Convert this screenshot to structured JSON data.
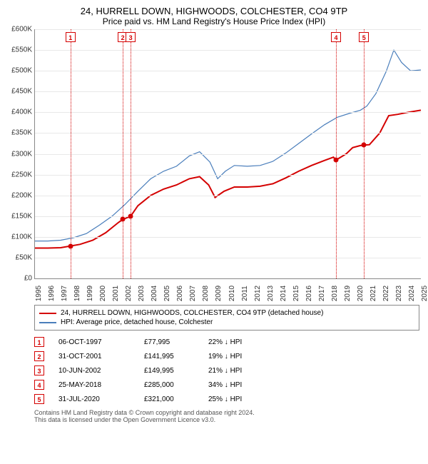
{
  "title": "24, HURRELL DOWN, HIGHWOODS, COLCHESTER, CO4 9TP",
  "subtitle": "Price paid vs. HM Land Registry's House Price Index (HPI)",
  "colors": {
    "series_property": "#d40000",
    "series_hpi": "#4a7ebb",
    "grid": "#e8e8e8",
    "axis": "#888888",
    "text": "#333333",
    "background": "#ffffff"
  },
  "chart": {
    "type": "line",
    "x_years_start": 1995,
    "x_years_end": 2025,
    "x_ticks": [
      1995,
      1996,
      1997,
      1998,
      1999,
      2000,
      2001,
      2002,
      2003,
      2004,
      2005,
      2006,
      2007,
      2008,
      2009,
      2010,
      2011,
      2012,
      2013,
      2014,
      2015,
      2016,
      2017,
      2018,
      2019,
      2020,
      2021,
      2022,
      2023,
      2024,
      2025
    ],
    "ylim": [
      0,
      600000
    ],
    "ytick_step": 50000,
    "ytick_labels": [
      "£0",
      "£50K",
      "£100K",
      "£150K",
      "£200K",
      "£250K",
      "£300K",
      "£350K",
      "£400K",
      "£450K",
      "£500K",
      "£550K",
      "£600K"
    ],
    "line_width_property": 2,
    "line_width_hpi": 1.2
  },
  "series_property": [
    [
      1995.0,
      73000
    ],
    [
      1996.0,
      73000
    ],
    [
      1997.0,
      74000
    ],
    [
      1997.76,
      77995
    ],
    [
      1998.5,
      82000
    ],
    [
      1999.5,
      92000
    ],
    [
      2000.5,
      110000
    ],
    [
      2001.5,
      135000
    ],
    [
      2001.83,
      141995
    ],
    [
      2002.44,
      149995
    ],
    [
      2003.0,
      175000
    ],
    [
      2004.0,
      200000
    ],
    [
      2005.0,
      215000
    ],
    [
      2006.0,
      225000
    ],
    [
      2007.0,
      240000
    ],
    [
      2007.8,
      245000
    ],
    [
      2008.5,
      225000
    ],
    [
      2009.0,
      195000
    ],
    [
      2009.7,
      210000
    ],
    [
      2010.5,
      220000
    ],
    [
      2011.5,
      220000
    ],
    [
      2012.5,
      222000
    ],
    [
      2013.5,
      228000
    ],
    [
      2014.5,
      242000
    ],
    [
      2015.5,
      258000
    ],
    [
      2016.5,
      272000
    ],
    [
      2017.5,
      284000
    ],
    [
      2018.2,
      292000
    ],
    [
      2018.4,
      285000
    ],
    [
      2018.5,
      287000
    ],
    [
      2019.2,
      300000
    ],
    [
      2019.7,
      315000
    ],
    [
      2020.3,
      320000
    ],
    [
      2020.58,
      321000
    ],
    [
      2021.0,
      322000
    ],
    [
      2021.8,
      350000
    ],
    [
      2022.5,
      392000
    ],
    [
      2023.2,
      395000
    ],
    [
      2024.0,
      400000
    ],
    [
      2025.0,
      405000
    ]
  ],
  "series_hpi": [
    [
      1995.0,
      90000
    ],
    [
      1996.0,
      90000
    ],
    [
      1997.0,
      92000
    ],
    [
      1998.0,
      98000
    ],
    [
      1999.0,
      108000
    ],
    [
      2000.0,
      128000
    ],
    [
      2001.0,
      150000
    ],
    [
      2002.0,
      178000
    ],
    [
      2003.0,
      210000
    ],
    [
      2004.0,
      240000
    ],
    [
      2005.0,
      258000
    ],
    [
      2006.0,
      270000
    ],
    [
      2007.0,
      295000
    ],
    [
      2007.8,
      305000
    ],
    [
      2008.6,
      280000
    ],
    [
      2009.2,
      240000
    ],
    [
      2009.8,
      258000
    ],
    [
      2010.5,
      272000
    ],
    [
      2011.5,
      270000
    ],
    [
      2012.5,
      272000
    ],
    [
      2013.5,
      282000
    ],
    [
      2014.5,
      302000
    ],
    [
      2015.5,
      325000
    ],
    [
      2016.5,
      348000
    ],
    [
      2017.5,
      370000
    ],
    [
      2018.5,
      388000
    ],
    [
      2019.5,
      398000
    ],
    [
      2020.3,
      405000
    ],
    [
      2020.8,
      415000
    ],
    [
      2021.5,
      445000
    ],
    [
      2022.3,
      498000
    ],
    [
      2022.9,
      550000
    ],
    [
      2023.5,
      520000
    ],
    [
      2024.2,
      500000
    ],
    [
      2025.0,
      502000
    ]
  ],
  "sale_points": [
    {
      "x": 1997.76,
      "y": 77995
    },
    {
      "x": 2001.83,
      "y": 141995
    },
    {
      "x": 2002.44,
      "y": 149995
    },
    {
      "x": 2018.4,
      "y": 285000
    },
    {
      "x": 2020.58,
      "y": 321000
    }
  ],
  "markers": [
    {
      "n": "1",
      "x": 1997.76
    },
    {
      "n": "2",
      "x": 2001.83
    },
    {
      "n": "3",
      "x": 2002.44
    },
    {
      "n": "4",
      "x": 2018.4
    },
    {
      "n": "5",
      "x": 2020.58
    }
  ],
  "legend": [
    {
      "color": "#d40000",
      "label": "24, HURRELL DOWN, HIGHWOODS, COLCHESTER, CO4 9TP (detached house)"
    },
    {
      "color": "#4a7ebb",
      "label": "HPI: Average price, detached house, Colchester"
    }
  ],
  "events": [
    {
      "n": "1",
      "date": "06-OCT-1997",
      "price": "£77,995",
      "delta": "22% ↓ HPI"
    },
    {
      "n": "2",
      "date": "31-OCT-2001",
      "price": "£141,995",
      "delta": "19% ↓ HPI"
    },
    {
      "n": "3",
      "date": "10-JUN-2002",
      "price": "£149,995",
      "delta": "21% ↓ HPI"
    },
    {
      "n": "4",
      "date": "25-MAY-2018",
      "price": "£285,000",
      "delta": "34% ↓ HPI"
    },
    {
      "n": "5",
      "date": "31-JUL-2020",
      "price": "£321,000",
      "delta": "25% ↓ HPI"
    }
  ],
  "attribution_line1": "Contains HM Land Registry data © Crown copyright and database right 2024.",
  "attribution_line2": "This data is licensed under the Open Government Licence v3.0."
}
